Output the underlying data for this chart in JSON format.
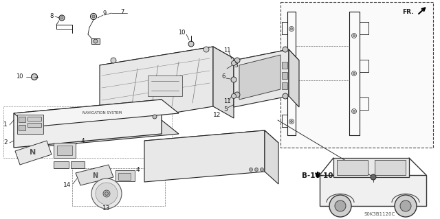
{
  "background_color": "#ffffff",
  "fig_width": 6.4,
  "fig_height": 3.19,
  "dpi": 100,
  "ref_code": "S0K3B1120C",
  "section_ref": "B-16-10",
  "direction": "FR."
}
